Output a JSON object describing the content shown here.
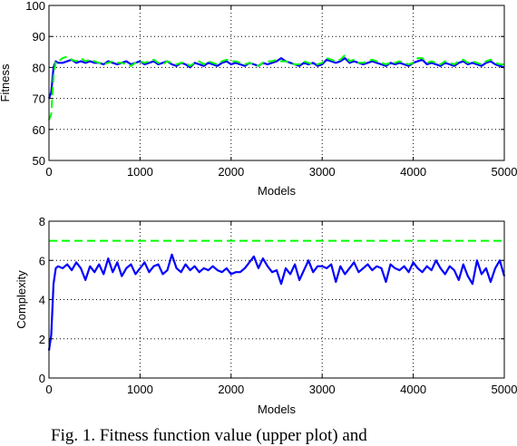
{
  "chart_data": [
    {
      "type": "line",
      "title": "",
      "xlabel": "Models",
      "ylabel": "Fitness",
      "xlim": [
        0,
        5000
      ],
      "ylim": [
        50,
        100
      ],
      "xticks": [
        0,
        1000,
        2000,
        3000,
        4000,
        5000
      ],
      "yticks": [
        50,
        60,
        70,
        80,
        90,
        100
      ],
      "grid": true,
      "series": [
        {
          "style": "solid",
          "color": "#0000ff",
          "x": [
            0,
            25,
            50,
            75,
            100,
            150,
            200,
            250,
            300,
            350,
            400,
            450,
            500,
            550,
            600,
            650,
            700,
            750,
            800,
            850,
            900,
            950,
            1000,
            1050,
            1100,
            1150,
            1200,
            1250,
            1300,
            1350,
            1400,
            1450,
            1500,
            1550,
            1600,
            1650,
            1700,
            1750,
            1800,
            1850,
            1900,
            1950,
            2000,
            2050,
            2100,
            2150,
            2200,
            2250,
            2300,
            2350,
            2400,
            2450,
            2500,
            2550,
            2600,
            2650,
            2700,
            2750,
            2800,
            2850,
            2900,
            2950,
            3000,
            3050,
            3100,
            3150,
            3200,
            3250,
            3300,
            3350,
            3400,
            3450,
            3500,
            3550,
            3600,
            3650,
            3700,
            3750,
            3800,
            3850,
            3900,
            3950,
            4000,
            4050,
            4100,
            4150,
            4200,
            4250,
            4300,
            4350,
            4400,
            4450,
            4500,
            4550,
            4600,
            4650,
            4700,
            4750,
            4800,
            4850,
            4900,
            4950,
            5000
          ],
          "y": [
            70,
            72,
            80,
            82,
            81.5,
            81.5,
            82,
            82.5,
            81.5,
            82,
            81.5,
            82,
            81.5,
            81.5,
            81,
            82,
            81.5,
            81,
            81.5,
            82,
            81,
            81.5,
            82,
            81,
            81.5,
            82,
            81,
            81.5,
            82,
            81,
            80.5,
            81.5,
            81,
            80,
            81.5,
            81,
            80.5,
            81.5,
            81,
            80.5,
            81.5,
            82,
            81,
            81.5,
            81,
            80.5,
            81.5,
            81,
            80.5,
            81.5,
            81,
            81.5,
            82,
            83,
            82,
            81.5,
            81,
            80.5,
            81.5,
            81,
            81.5,
            80.5,
            81,
            82.5,
            82,
            81.5,
            82,
            83,
            81.5,
            82,
            81.5,
            81,
            81.5,
            82,
            81.5,
            81,
            80.5,
            81.5,
            81,
            81.5,
            81,
            80.5,
            81.5,
            82,
            82.5,
            81,
            81.5,
            81,
            80.5,
            81.5,
            81,
            80.5,
            81.5,
            82,
            81,
            81.5,
            81,
            80.5,
            81.5,
            82,
            81,
            80.5,
            80
          ]
        },
        {
          "style": "dashed",
          "color": "#00ff00",
          "x": [
            0,
            25,
            50,
            75,
            100,
            150,
            200,
            250,
            300,
            350,
            400,
            450,
            500,
            550,
            600,
            650,
            700,
            750,
            800,
            850,
            900,
            950,
            1000,
            1050,
            1100,
            1150,
            1200,
            1250,
            1300,
            1350,
            1400,
            1450,
            1500,
            1550,
            1600,
            1650,
            1700,
            1750,
            1800,
            1850,
            1900,
            1950,
            2000,
            2050,
            2100,
            2150,
            2200,
            2250,
            2300,
            2350,
            2400,
            2450,
            2500,
            2550,
            2600,
            2650,
            2700,
            2750,
            2800,
            2850,
            2900,
            2950,
            3000,
            3050,
            3100,
            3150,
            3200,
            3250,
            3300,
            3350,
            3400,
            3450,
            3500,
            3550,
            3600,
            3650,
            3700,
            3750,
            3800,
            3850,
            3900,
            3950,
            4000,
            4050,
            4100,
            4150,
            4200,
            4250,
            4300,
            4350,
            4400,
            4450,
            4500,
            4550,
            4600,
            4650,
            4700,
            4750,
            4800,
            4850,
            4900,
            4950,
            5000
          ],
          "y": [
            63,
            65,
            77,
            82,
            82,
            83,
            83.5,
            82.5,
            82,
            83,
            82,
            82.5,
            82,
            81.5,
            81,
            81.5,
            82,
            81.5,
            81.5,
            81,
            80.5,
            81.5,
            82,
            81.5,
            82,
            82.5,
            81.5,
            81,
            82,
            81.5,
            81,
            81.5,
            81.5,
            80.5,
            81.5,
            82,
            81,
            82,
            81.5,
            81,
            82,
            82.5,
            82,
            82,
            81.5,
            81,
            81.5,
            81,
            80.5,
            81.5,
            82,
            82,
            82.5,
            82,
            82,
            81.5,
            81,
            81,
            82,
            81.5,
            81,
            81,
            81.5,
            83,
            82.5,
            82,
            82.5,
            84,
            82,
            82.5,
            81.5,
            81.5,
            82,
            82.5,
            82,
            81.5,
            81,
            81.5,
            81.5,
            82,
            81.5,
            81,
            81.5,
            83,
            83,
            81.5,
            82,
            81.5,
            81,
            82,
            81.5,
            81,
            82,
            82.5,
            81.5,
            82,
            81.5,
            81,
            82,
            82.5,
            81.5,
            81,
            81
          ]
        }
      ]
    },
    {
      "type": "line",
      "title": "",
      "xlabel": "Models",
      "ylabel": "Complexity",
      "xlim": [
        0,
        5000
      ],
      "ylim": [
        0,
        8
      ],
      "xticks": [
        0,
        1000,
        2000,
        3000,
        4000,
        5000
      ],
      "yticks": [
        0,
        2,
        4,
        6,
        8
      ],
      "grid": true,
      "series": [
        {
          "style": "solid",
          "color": "#0000ff",
          "x": [
            0,
            25,
            50,
            75,
            100,
            150,
            200,
            250,
            300,
            350,
            400,
            450,
            500,
            550,
            600,
            650,
            700,
            750,
            800,
            850,
            900,
            950,
            1000,
            1050,
            1100,
            1150,
            1200,
            1250,
            1300,
            1350,
            1400,
            1450,
            1500,
            1550,
            1600,
            1650,
            1700,
            1750,
            1800,
            1850,
            1900,
            1950,
            2000,
            2050,
            2100,
            2150,
            2200,
            2250,
            2300,
            2350,
            2400,
            2450,
            2500,
            2550,
            2600,
            2650,
            2700,
            2750,
            2800,
            2850,
            2900,
            2950,
            3000,
            3050,
            3100,
            3150,
            3200,
            3250,
            3300,
            3350,
            3400,
            3450,
            3500,
            3550,
            3600,
            3650,
            3700,
            3750,
            3800,
            3850,
            3900,
            3950,
            4000,
            4050,
            4100,
            4150,
            4200,
            4250,
            4300,
            4350,
            4400,
            4450,
            4500,
            4550,
            4600,
            4650,
            4700,
            4750,
            4800,
            4850,
            4900,
            4950,
            5000
          ],
          "y": [
            1.4,
            2.2,
            4.8,
            5.6,
            5.7,
            5.6,
            5.8,
            5.5,
            5.9,
            5.6,
            5.0,
            5.7,
            5.4,
            5.8,
            5.3,
            6.1,
            5.4,
            5.9,
            5.2,
            5.6,
            5.8,
            5.3,
            5.6,
            5.9,
            5.4,
            5.7,
            5.8,
            5.3,
            5.5,
            6.3,
            5.6,
            5.4,
            5.8,
            5.5,
            5.7,
            5.4,
            5.6,
            5.5,
            5.7,
            5.5,
            5.4,
            5.6,
            5.3,
            5.4,
            5.4,
            5.6,
            5.9,
            6.2,
            5.6,
            6.1,
            5.7,
            5.4,
            5.5,
            4.8,
            5.6,
            5.3,
            5.8,
            5.0,
            5.5,
            6.0,
            5.4,
            5.7,
            5.7,
            5.6,
            5.8,
            4.9,
            5.7,
            5.3,
            5.6,
            5.9,
            5.4,
            5.6,
            5.8,
            5.5,
            5.7,
            5.6,
            4.9,
            5.8,
            5.6,
            5.5,
            5.7,
            5.4,
            5.9,
            5.6,
            5.4,
            5.7,
            5.5,
            6.0,
            5.6,
            5.3,
            5.7,
            5.5,
            5.0,
            5.8,
            5.2,
            4.8,
            6.0,
            5.3,
            5.6,
            4.9,
            5.6,
            6.0,
            5.2
          ]
        },
        {
          "style": "dashed",
          "color": "#00ff00",
          "x": [
            0,
            5000
          ],
          "y": [
            7,
            7
          ]
        }
      ]
    }
  ],
  "caption": "Fig. 1. Fitness function value (upper plot) and"
}
